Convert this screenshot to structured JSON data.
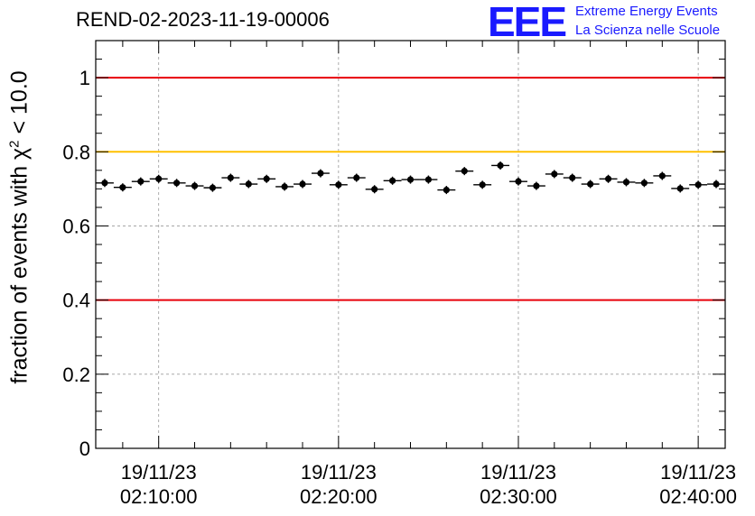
{
  "title": "REND-02-2023-11-19-00006",
  "logo": {
    "letters": "EEE",
    "line1": "Extreme Energy Events",
    "line2": "La Scienza nelle Scuole",
    "color": "#1a1aff"
  },
  "chart_data": {
    "type": "scatter",
    "title": "REND-02-2023-11-19-00006",
    "ylabel": {
      "prefix": "fraction of events with ",
      "symbol": "χ",
      "exponent": "2",
      "suffix": " < 10.0"
    },
    "ylim": [
      0,
      1.1
    ],
    "yticks": [
      "0",
      "0.2",
      "0.4",
      "0.6",
      "0.8",
      "1"
    ],
    "ytick_values": [
      0,
      0.2,
      0.4,
      0.6,
      0.8,
      1.0
    ],
    "xlim_minutes": [
      2.25,
      19.75
    ],
    "xticks": [
      {
        "minute": 4,
        "date": "19/11/23",
        "time": "02:10:00"
      },
      {
        "minute": 9,
        "date": "19/11/23",
        "time": "02:20:00"
      },
      {
        "minute": 14,
        "date": "19/11/23",
        "time": "02:30:00"
      },
      {
        "minute": 19,
        "date": "19/11/23",
        "time": "02:40:00"
      }
    ],
    "grid": true,
    "reference_lines": [
      {
        "y": 1.0,
        "color": "#e8000b"
      },
      {
        "y": 0.8,
        "color": "#ffc000"
      },
      {
        "y": 0.4,
        "color": "#e8000b"
      }
    ],
    "series": [
      {
        "x_minutes": [
          2.5,
          3.0,
          3.5,
          4.0,
          4.5,
          5.0,
          5.5,
          6.0,
          6.5,
          7.0,
          7.5,
          8.0,
          8.5,
          9.0,
          9.5,
          10.0,
          10.5,
          11.0,
          11.5,
          12.0,
          12.5,
          13.0,
          13.5,
          14.0,
          14.5,
          15.0,
          15.5,
          16.0,
          16.5,
          17.0,
          17.5,
          18.0,
          18.5,
          19.0,
          19.5
        ],
        "y": [
          0.716,
          0.704,
          0.72,
          0.727,
          0.716,
          0.708,
          0.703,
          0.73,
          0.713,
          0.727,
          0.706,
          0.713,
          0.742,
          0.711,
          0.73,
          0.699,
          0.722,
          0.725,
          0.725,
          0.697,
          0.748,
          0.711,
          0.763,
          0.72,
          0.708,
          0.74,
          0.73,
          0.713,
          0.727,
          0.718,
          0.716,
          0.735,
          0.701,
          0.711,
          0.713
        ],
        "yerr": 0.011,
        "xerr_minutes": 0.25,
        "color": "#000000"
      }
    ]
  }
}
